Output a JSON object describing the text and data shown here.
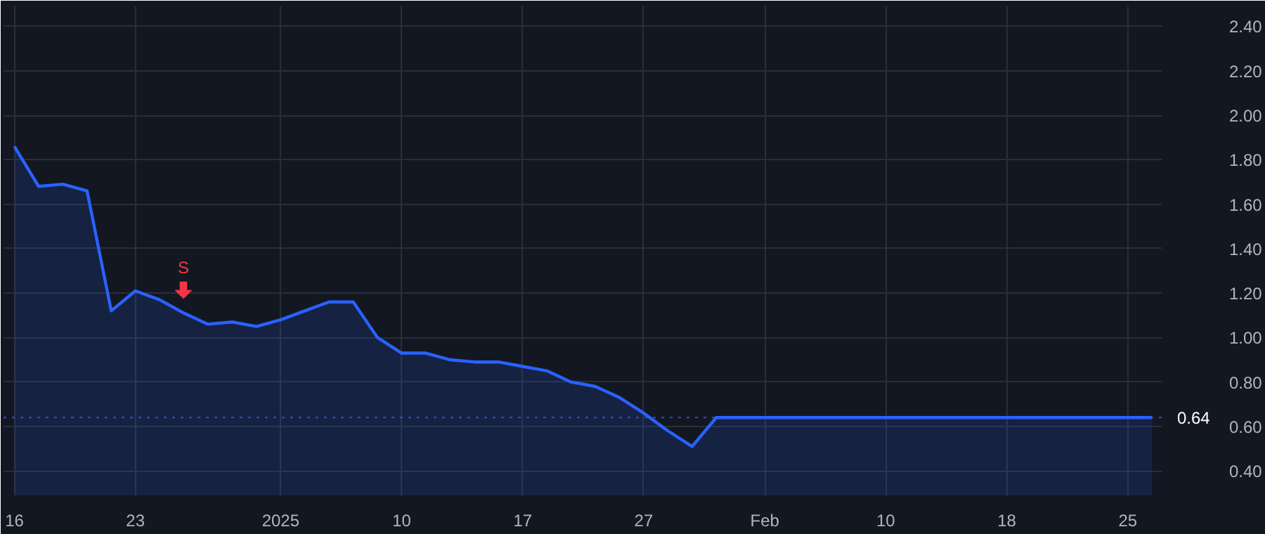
{
  "chart_data": {
    "type": "area",
    "categories": [
      "16",
      null,
      null,
      null,
      null,
      "23",
      null,
      null,
      null,
      null,
      null,
      "2025",
      null,
      null,
      null,
      null,
      "10",
      null,
      null,
      null,
      null,
      "17",
      null,
      null,
      null,
      null,
      "27",
      null,
      null,
      null,
      null,
      "Feb",
      null,
      null,
      null,
      null,
      "10",
      null,
      null,
      null,
      null,
      "18",
      null,
      null,
      null,
      null,
      "25",
      null
    ],
    "series": [
      {
        "color": "#2962ff",
        "values": [
          1.86,
          1.68,
          1.69,
          1.66,
          1.12,
          1.21,
          1.17,
          1.11,
          1.06,
          1.07,
          1.05,
          1.08,
          1.12,
          1.16,
          1.16,
          1.0,
          0.93,
          0.93,
          0.9,
          0.89,
          0.89,
          0.87,
          0.85,
          0.8,
          0.78,
          0.73,
          0.66,
          0.58,
          0.51,
          0.64,
          0.64,
          0.64,
          0.64,
          0.64,
          0.64,
          0.64,
          0.64,
          0.64,
          0.64,
          0.64,
          0.64,
          0.64,
          0.64,
          0.64,
          0.64,
          0.64,
          0.64,
          0.64
        ]
      }
    ],
    "ylim": [
      0.29,
      2.49
    ],
    "yticks": [
      {
        "value": 0.4,
        "label": "0.40"
      },
      {
        "value": 0.6,
        "label": "0.60"
      },
      {
        "value": 0.8,
        "label": "0.80"
      },
      {
        "value": 1.0,
        "label": "1.00"
      },
      {
        "value": 1.2,
        "label": "1.20"
      },
      {
        "value": 1.4,
        "label": "1.40"
      },
      {
        "value": 1.6,
        "label": "1.60"
      },
      {
        "value": 1.8,
        "label": "1.80"
      },
      {
        "value": 2.0,
        "label": "2.00"
      },
      {
        "value": 2.2,
        "label": "2.20"
      },
      {
        "value": 2.4,
        "label": "2.40"
      }
    ],
    "ref_lines": [
      {
        "axis": "y",
        "value": 0.64,
        "label": "0.64",
        "color": "#2962ff",
        "line_style": "dotted"
      }
    ],
    "annotations": [
      "S"
    ],
    "grid": true
  }
}
